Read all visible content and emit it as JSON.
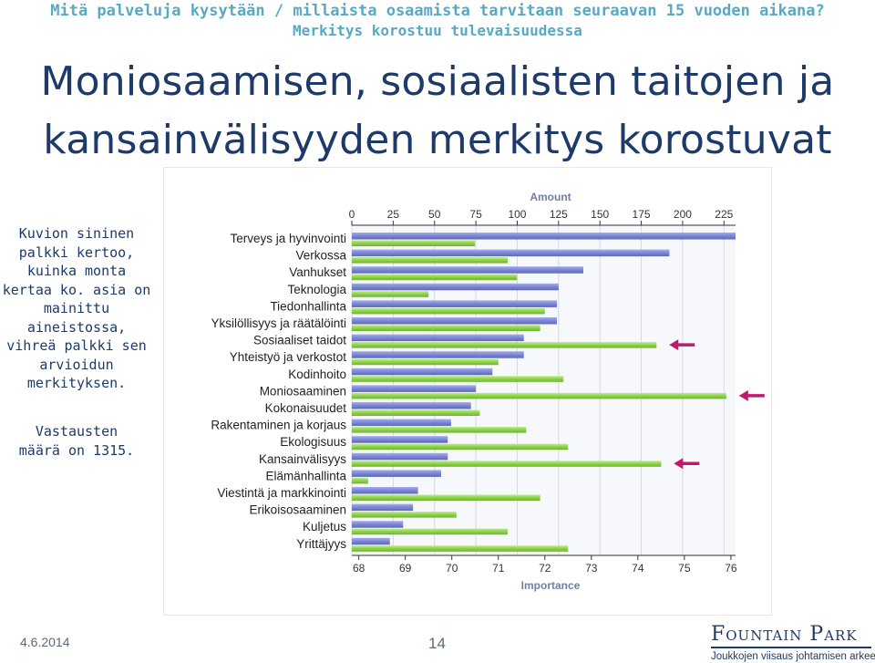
{
  "header": {
    "line1": "Mitä palveluja kysytään / millaista osaamista tarvitaan seuraavan 15 vuoden aikana?",
    "line2": "Merkitys korostuu tulevaisuudessa",
    "title_line1": "Moniosaamisen, sosiaalisten taitojen ja",
    "title_line2": "kansainvälisyyden merkitys korostuvat"
  },
  "side_note": {
    "lines": [
      "Kuvion sininen",
      "palkki kertoo,",
      "kuinka monta",
      "kertaa ko. asia on",
      "mainittu",
      "aineistossa,",
      "vihreä palkki sen",
      "arvioidun",
      "merkityksen."
    ],
    "respondents_lines": [
      "Vastausten",
      "määrä on 1315."
    ]
  },
  "footer": {
    "date": "4.6.2014",
    "page": "14",
    "logo_name": "Fountain Park",
    "logo_tagline": "Joukkojen viisaus johtamisen arkeen"
  },
  "colors": {
    "blue_bar": "#7b86d4",
    "green_bar": "#8ed14c",
    "arrow": "#c0186e",
    "title": "#1d3a6a",
    "header": "#58a9c4"
  },
  "chart_data": {
    "type": "bar",
    "orientation": "horizontal",
    "categories": [
      "Terveys ja hyvinvointi",
      "Verkossa",
      "Vanhukset",
      "Teknologia",
      "Tiedonhallinta",
      "Yksilöllisyys ja räätälöinti",
      "Sosiaaliset taidot",
      "Yhteistyö ja verkostot",
      "Kodinhoito",
      "Moniosaaminen",
      "Kokonaisuudet",
      "Rakentaminen ja korjaus",
      "Ekologisuus",
      "Kansainvälisyys",
      "Elämänhallinta",
      "Viestintä ja markkinointi",
      "Erikoisosaaminen",
      "Kuljetus",
      "Yrittäjyys"
    ],
    "series": [
      {
        "name": "Amount",
        "axis": "top",
        "values": [
          232,
          192,
          140,
          125,
          124,
          124,
          104,
          104,
          85,
          75,
          72,
          60,
          58,
          58,
          54,
          40,
          37,
          31,
          23
        ]
      },
      {
        "name": "Importance",
        "axis": "bottom",
        "values": [
          70.5,
          71.2,
          71.4,
          69.5,
          72.0,
          71.9,
          74.4,
          71.0,
          72.4,
          75.9,
          70.6,
          71.6,
          72.5,
          74.5,
          68.2,
          71.9,
          70.1,
          71.2,
          72.5
        ]
      }
    ],
    "x_top": {
      "label": "Amount",
      "ticks": [
        "0",
        "25",
        "50",
        "75",
        "100",
        "125",
        "150",
        "175",
        "200",
        "225"
      ],
      "range": [
        0,
        232
      ]
    },
    "x_bottom": {
      "label": "Importance",
      "ticks": [
        "68",
        "69",
        "70",
        "71",
        "72",
        "73",
        "74",
        "75",
        "76"
      ],
      "range": [
        67.85,
        76.1
      ]
    },
    "highlighted": [
      "Sosiaaliset taidot",
      "Moniosaaminen",
      "Kansainvälisyys"
    ],
    "grid": true
  }
}
